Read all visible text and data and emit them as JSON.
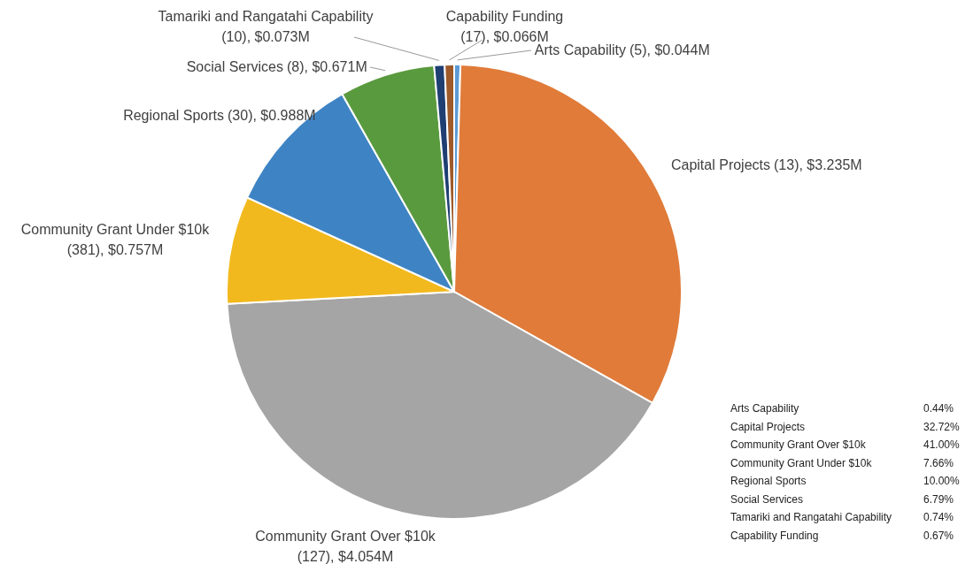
{
  "chart_data": {
    "type": "pie",
    "categories": [
      "Arts Capability",
      "Capital Projects",
      "Community Grant Over $10k",
      "Community Grant Under $10k",
      "Regional Sports",
      "Social Services",
      "Tamariki and Rangatahi Capability",
      "Capability Funding"
    ],
    "values": [
      0.44,
      32.72,
      41.0,
      7.66,
      10.0,
      6.79,
      0.74,
      0.67
    ],
    "colors": [
      "#5b9bd5",
      "#e07b39",
      "#a5a5a5",
      "#f2b91e",
      "#3e84c4",
      "#5a9a3e",
      "#1f3f73",
      "#9e5a2a"
    ],
    "value_labels": [
      "(5), $0.044M",
      "(13), $3.235M",
      "(127), $4.054M",
      "(381), $0.757M",
      "(30), $0.988M",
      "(8), $0.671M",
      "(10), $0.073M",
      "(17), $0.066M"
    ],
    "annotations": [
      "Arts Capability 0.44%",
      "Capital Projects 32.72%",
      "Community Grant Over $10k 41.00%",
      "Community Grant Under $10k 7.66%",
      "Regional Sports 10.00%",
      "Social Services 6.79%",
      "Tamariki and Rangatahi Capability 0.74%",
      "Capability Funding 0.67%"
    ]
  }
}
